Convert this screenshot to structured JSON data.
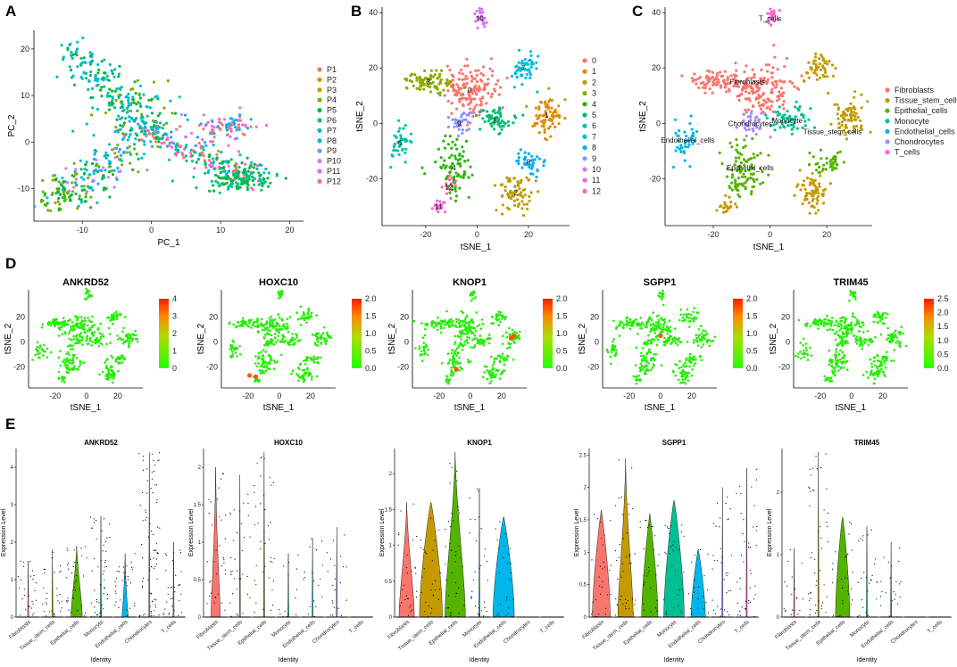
{
  "panel_labels": [
    "A",
    "B",
    "C",
    "D",
    "E"
  ],
  "chart_data": [
    {
      "id": "A",
      "type": "scatter",
      "xlabel": "PC_1",
      "ylabel": "PC_2",
      "xlim": [
        -17,
        22
      ],
      "ylim": [
        -17,
        24
      ],
      "xticks": [
        -10,
        0,
        10,
        20
      ],
      "yticks": [
        -10,
        0,
        10,
        20
      ],
      "legend": [
        "P1",
        "P2",
        "P3",
        "P4",
        "P5",
        "P6",
        "P7",
        "P8",
        "P9",
        "P10",
        "P11",
        "P12"
      ],
      "colors": [
        "#F8766D",
        "#DE8C00",
        "#B79F00",
        "#7CAE00",
        "#00BA38",
        "#00C08B",
        "#00BFC4",
        "#00B4F0",
        "#619CFF",
        "#C77CFF",
        "#F564E3",
        "#FF64B0"
      ],
      "point_groups": [
        {
          "shape": "arm",
          "from": [
            -12,
            20
          ],
          "to": [
            0,
            2
          ],
          "n": 170,
          "spread": 1.6,
          "palette": [
            7,
            6,
            4,
            5
          ]
        },
        {
          "shape": "arm",
          "from": [
            -14,
            -13
          ],
          "to": [
            0,
            3
          ],
          "n": 200,
          "spread": 2.0,
          "palette": [
            7,
            6,
            4,
            9,
            3
          ]
        },
        {
          "shape": "arm",
          "from": [
            0,
            2
          ],
          "to": [
            15,
            -8
          ],
          "n": 200,
          "spread": 1.5,
          "palette": [
            4,
            5,
            7,
            10,
            0
          ]
        },
        {
          "shape": "blob",
          "center": [
            13,
            -8
          ],
          "n": 110,
          "spread": 1.6,
          "palette": [
            4,
            5
          ]
        },
        {
          "shape": "blob",
          "center": [
            11,
            3
          ],
          "n": 80,
          "spread": 1.4,
          "palette": [
            0,
            10,
            7
          ]
        },
        {
          "shape": "blob",
          "center": [
            -2,
            8
          ],
          "n": 70,
          "spread": 2.5,
          "palette": [
            3,
            4,
            6
          ]
        },
        {
          "shape": "blob",
          "center": [
            -13,
            -11
          ],
          "n": 60,
          "spread": 1.8,
          "palette": [
            4,
            3
          ]
        }
      ]
    },
    {
      "id": "B",
      "type": "scatter",
      "xlabel": "tSNE_1",
      "ylabel": "tSNE_2",
      "xlim": [
        -37,
        36
      ],
      "ylim": [
        -37,
        42
      ],
      "xticks": [
        -20,
        0,
        20
      ],
      "yticks": [
        -20,
        0,
        20,
        40
      ],
      "legend": [
        "0",
        "1",
        "2",
        "3",
        "4",
        "5",
        "6",
        "7",
        "8",
        "9",
        "10",
        "11",
        "12"
      ],
      "colors": [
        "#F8766D",
        "#E18A00",
        "#BE9C00",
        "#8CAB00",
        "#24B700",
        "#00BE70",
        "#00C1AB",
        "#00BBDA",
        "#00ACFC",
        "#8B93FF",
        "#D575FE",
        "#F962DD",
        "#FF65AC"
      ],
      "clusters": [
        {
          "label": "0",
          "x": -3,
          "y": 12,
          "n": 150,
          "sx": 5.5,
          "sy": 4.5,
          "color": 0
        },
        {
          "label": "1",
          "x": 27,
          "y": 3,
          "n": 70,
          "sx": 3,
          "sy": 3.5,
          "color": 1
        },
        {
          "label": "2",
          "x": 15,
          "y": -25,
          "n": 70,
          "sx": 3,
          "sy": 3.5,
          "color": 2
        },
        {
          "label": "3",
          "x": -19,
          "y": 15,
          "n": 80,
          "sx": 5,
          "sy": 2,
          "color": 3
        },
        {
          "label": "4",
          "x": -9,
          "y": -16,
          "n": 80,
          "sx": 3.5,
          "sy": 5,
          "color": 4
        },
        {
          "label": "5",
          "x": 7,
          "y": 1,
          "n": 60,
          "sx": 4,
          "sy": 2.5,
          "color": 5
        },
        {
          "label": "6",
          "x": -30,
          "y": -7,
          "n": 40,
          "sx": 2,
          "sy": 4,
          "color": 6
        },
        {
          "label": "7",
          "x": 18,
          "y": 20,
          "n": 50,
          "sx": 2.5,
          "sy": 3,
          "color": 7
        },
        {
          "label": "8",
          "x": 20,
          "y": -14,
          "n": 40,
          "sx": 3,
          "sy": 2,
          "color": 8
        },
        {
          "label": "9",
          "x": -7,
          "y": 0,
          "n": 35,
          "sx": 2.2,
          "sy": 2.2,
          "color": 9
        },
        {
          "label": "10",
          "x": 1,
          "y": 38,
          "n": 25,
          "sx": 1.2,
          "sy": 2,
          "color": 10
        },
        {
          "label": "11",
          "x": -15,
          "y": -30,
          "n": 20,
          "sx": 1.3,
          "sy": 1.5,
          "color": 11
        },
        {
          "label": "12",
          "x": -11,
          "y": -23,
          "n": 15,
          "sx": 1.5,
          "sy": 2,
          "color": 12
        }
      ]
    },
    {
      "id": "C",
      "type": "scatter",
      "xlabel": "tSNE_1",
      "ylabel": "tSNE_2",
      "xlim": [
        -37,
        36
      ],
      "ylim": [
        -37,
        42
      ],
      "xticks": [
        -20,
        0,
        20
      ],
      "yticks": [
        -20,
        0,
        20,
        40
      ],
      "legend": [
        "Fibroblasts",
        "Tissue_stem_cells",
        "Epithelial_cells",
        "Monocyte",
        "Endothelial_cells",
        "Chondrocytes",
        "T_cells"
      ],
      "colors": [
        "#F8766D",
        "#C49A00",
        "#53B400",
        "#00C094",
        "#00B6EB",
        "#A58AFF",
        "#FB61D7"
      ],
      "clusters": [
        {
          "x": -3,
          "y": 12,
          "n": 150,
          "sx": 5.5,
          "sy": 4.5,
          "color": 0
        },
        {
          "x": -19,
          "y": 15,
          "n": 80,
          "sx": 5,
          "sy": 2,
          "color": 0
        },
        {
          "x": 27,
          "y": 3,
          "n": 70,
          "sx": 3,
          "sy": 3.5,
          "color": 1
        },
        {
          "x": 15,
          "y": -25,
          "n": 70,
          "sx": 3,
          "sy": 3.5,
          "color": 1
        },
        {
          "x": 18,
          "y": 20,
          "n": 50,
          "sx": 2.5,
          "sy": 3,
          "color": 1
        },
        {
          "x": -9,
          "y": -16,
          "n": 80,
          "sx": 3.5,
          "sy": 5,
          "color": 2
        },
        {
          "x": 20,
          "y": -14,
          "n": 40,
          "sx": 3,
          "sy": 2,
          "color": 2
        },
        {
          "x": -11,
          "y": -23,
          "n": 15,
          "sx": 1.5,
          "sy": 2,
          "color": 2
        },
        {
          "x": -15,
          "y": -30,
          "n": 20,
          "sx": 1.3,
          "sy": 1.5,
          "color": 1
        },
        {
          "x": 7,
          "y": 1,
          "n": 60,
          "sx": 4,
          "sy": 2.5,
          "color": 3
        },
        {
          "x": -30,
          "y": -7,
          "n": 40,
          "sx": 2,
          "sy": 4,
          "color": 4
        },
        {
          "x": -7,
          "y": 0,
          "n": 35,
          "sx": 2.2,
          "sy": 2.2,
          "color": 5
        },
        {
          "x": 1,
          "y": 38,
          "n": 25,
          "sx": 1.2,
          "sy": 2,
          "color": 6
        }
      ],
      "labels": [
        {
          "text": "T_cells",
          "x": 0,
          "y": 38
        },
        {
          "text": "Fibroblasts",
          "x": -8,
          "y": 15
        },
        {
          "text": "Chondrocytes",
          "x": -7,
          "y": 0
        },
        {
          "text": "Monocyte",
          "x": 6,
          "y": 1
        },
        {
          "text": "Tissue_stem_cells",
          "x": 22,
          "y": -3
        },
        {
          "text": "Endothelial_cells",
          "x": -29,
          "y": -6
        },
        {
          "text": "Epithelial_cells",
          "x": -7,
          "y": -16
        }
      ]
    }
  ],
  "feature_plots": [
    {
      "gene": "ANKRD52",
      "ticks": [
        "4",
        "3",
        "2",
        "1",
        "0"
      ],
      "max": 4,
      "hot": []
    },
    {
      "gene": "HOXC10",
      "ticks": [
        "2.0",
        "1.5",
        "1.0",
        "0.5",
        "0.0"
      ],
      "max": 2,
      "hot": [
        [
          -19,
          -27
        ],
        [
          -15,
          -28
        ]
      ]
    },
    {
      "gene": "KNOP1",
      "ticks": [
        "2.0",
        "1.5",
        "1.0",
        "0.5",
        "0.0"
      ],
      "max": 2.2,
      "hot": [
        [
          -9,
          -22
        ],
        [
          26,
          3
        ],
        [
          28,
          5
        ]
      ]
    },
    {
      "gene": "SGPP1",
      "ticks": [
        "2.0",
        "1.5",
        "1.0",
        "0.5",
        "0.0"
      ],
      "max": 2.2,
      "hot": [
        [
          0,
          5
        ]
      ]
    },
    {
      "gene": "TRIM45",
      "ticks": [
        "2.5",
        "2.0",
        "1.5",
        "1.0",
        "0.5",
        "0.0"
      ],
      "max": 2.6,
      "hot": []
    }
  ],
  "feature_axes": {
    "xlabel": "tSNE_1",
    "ylabel": "tSNE_2",
    "xticks": [
      "-20",
      "0",
      "20"
    ],
    "yticks": [
      "20",
      "0",
      "-20"
    ]
  },
  "violin_plots": {
    "xlabel": "Identity",
    "ylabel": "Expression Level",
    "categories": [
      "Fibroblasts",
      "Tissue_stem_cells",
      "Epithelial_cells",
      "Monocyte",
      "Endothelial_cells",
      "Chondrocytes",
      "T_cells"
    ],
    "colors": [
      "#F8766D",
      "#C49A00",
      "#53B400",
      "#00C094",
      "#00B6EB",
      "#A58AFF",
      "#FB61D7"
    ],
    "panels": [
      {
        "gene": "ANKRD52",
        "yticks": [
          0,
          1,
          2,
          3,
          4
        ],
        "ymax": 4.5,
        "maxes": [
          1.5,
          1.8,
          1.9,
          2.7,
          1.7,
          4.4,
          2.0
        ],
        "bulge": [
          0,
          0,
          0.22,
          0,
          0.12,
          0,
          0
        ],
        "bulge_h": [
          0,
          0,
          1.2,
          0,
          0.5,
          0,
          0
        ]
      },
      {
        "gene": "HOXC10",
        "yticks": [
          0.0,
          0.5,
          1.0,
          1.5,
          2.0
        ],
        "ymax": 2.25,
        "maxes": [
          2.0,
          1.9,
          2.2,
          0.85,
          1.05,
          1.2,
          0
        ],
        "bulge": [
          0.18,
          0,
          0,
          0,
          0,
          0,
          0
        ],
        "bulge_h": [
          0.9,
          0,
          0,
          0,
          0,
          0,
          0
        ]
      },
      {
        "gene": "KNOP1",
        "yticks": [
          0.0,
          0.5,
          1.0,
          1.5,
          2.0
        ],
        "ymax": 2.35,
        "maxes": [
          1.6,
          1.6,
          2.3,
          1.8,
          1.4,
          0,
          0
        ],
        "bulge": [
          0.3,
          0.45,
          0.4,
          0,
          0.42,
          0,
          0
        ],
        "bulge_h": [
          1.0,
          1.6,
          1.5,
          0,
          1.4,
          0,
          0
        ]
      },
      {
        "gene": "SGPP1",
        "yticks": [
          0.0,
          0.5,
          1.0,
          1.5,
          2.0,
          2.5
        ],
        "ymax": 2.6,
        "maxes": [
          1.65,
          2.45,
          1.6,
          1.8,
          1.05,
          2.0,
          2.3
        ],
        "bulge": [
          0.35,
          0.3,
          0.32,
          0.4,
          0.28,
          0,
          0
        ],
        "bulge_h": [
          1.6,
          1.4,
          1.5,
          1.8,
          1.0,
          0,
          0
        ]
      },
      {
        "gene": "TRIM45",
        "yticks": [
          0,
          1,
          2
        ],
        "ymax": 2.7,
        "maxes": [
          1.1,
          2.65,
          1.6,
          1.45,
          1.2,
          0,
          0
        ],
        "bulge": [
          0,
          0,
          0.28,
          0,
          0,
          0,
          0
        ],
        "bulge_h": [
          0,
          0,
          1.6,
          0,
          0,
          0,
          0
        ]
      }
    ]
  }
}
